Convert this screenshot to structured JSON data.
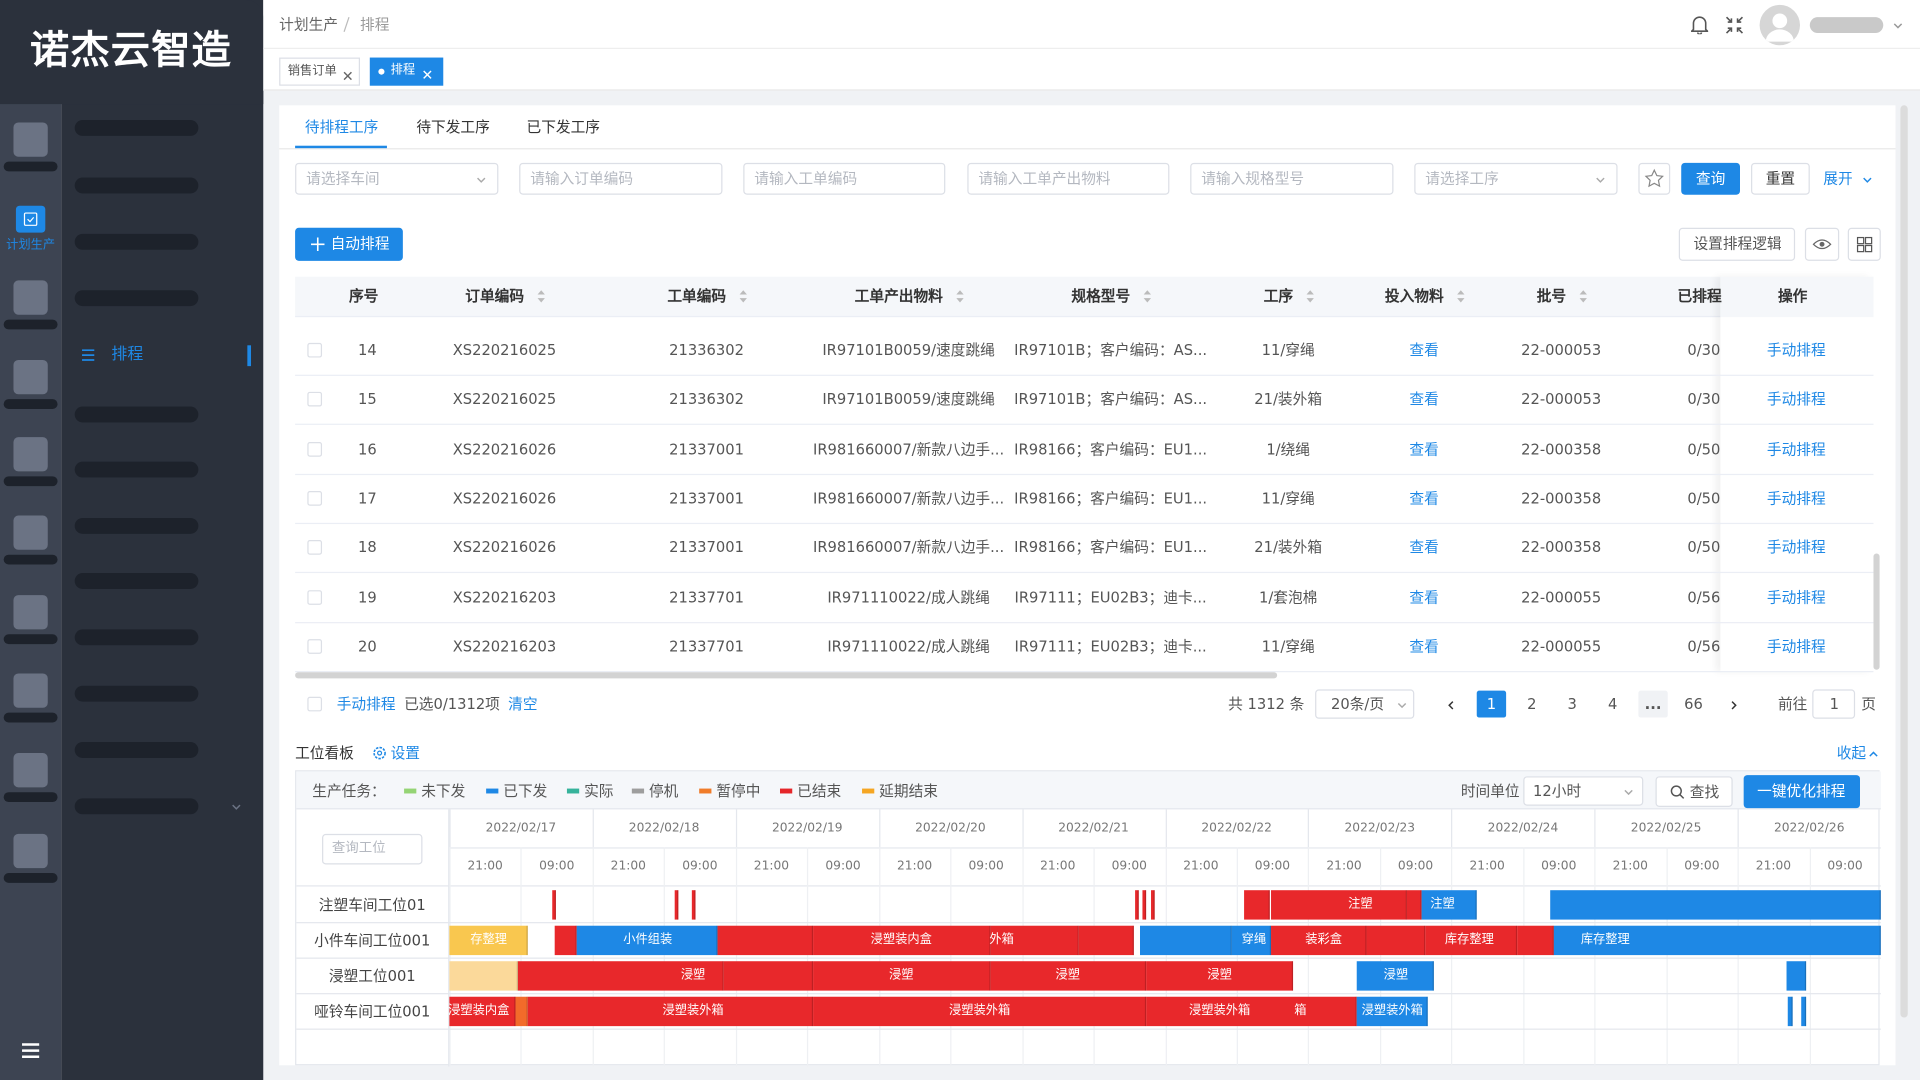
{
  "logo": "诺杰云智造",
  "sidebar": {
    "icon_label": "计划生产",
    "menu_item": "排程"
  },
  "breadcrumb": [
    "计划生产",
    "排程"
  ],
  "page_tabs": [
    "销售订单",
    "排程"
  ],
  "sub_tabs": [
    "待排程工序",
    "待下发工序",
    "已下发工序"
  ],
  "filters": [
    "请选择车间",
    "请输入订单编码",
    "请输入工单编码",
    "请输入工单产出物料",
    "请输入规格型号",
    "请选择工序"
  ],
  "actions": {
    "query": "查询",
    "reset": "重置",
    "expand": "展开",
    "auto_schedule": "自动排程",
    "schedule_logic": "设置排程逻辑"
  },
  "table": {
    "columns": [
      "序号",
      "订单编码",
      "工单编码",
      "工单产出物料",
      "规格型号",
      "工序",
      "投入物料",
      "批号",
      "已排程",
      "操作"
    ],
    "rows": [
      [
        14,
        "XS220216025",
        "21336302",
        "IR97101B0059/速度跳绳",
        "IR97101B；客户编码：AS...",
        "11/穿绳",
        "查看",
        "22-000053",
        "0/30",
        "手动排程"
      ],
      [
        15,
        "XS220216025",
        "21336302",
        "IR97101B0059/速度跳绳",
        "IR97101B；客户编码：AS...",
        "21/装外箱",
        "查看",
        "22-000053",
        "0/30",
        "手动排程"
      ],
      [
        16,
        "XS220216026",
        "21337001",
        "IR981660007/新款八边手...",
        "IR98166；客户编码：EU1...",
        "1/绕绳",
        "查看",
        "22-000358",
        "0/50",
        "手动排程"
      ],
      [
        17,
        "XS220216026",
        "21337001",
        "IR981660007/新款八边手...",
        "IR98166；客户编码：EU1...",
        "11/穿绳",
        "查看",
        "22-000358",
        "0/50",
        "手动排程"
      ],
      [
        18,
        "XS220216026",
        "21337001",
        "IR981660007/新款八边手...",
        "IR98166；客户编码：EU1...",
        "21/装外箱",
        "查看",
        "22-000358",
        "0/50",
        "手动排程"
      ],
      [
        19,
        "XS220216203",
        "21337701",
        "IR971110022/成人跳绳",
        "IR97111；EU02B3；迪卡...",
        "1/套泡棉",
        "查看",
        "22-000055",
        "0/56",
        "手动排程"
      ],
      [
        20,
        "XS220216203",
        "21337701",
        "IR971110022/成人跳绳",
        "IR97111；EU02B3；迪卡...",
        "11/穿绳",
        "查看",
        "22-000055",
        "0/56",
        "手动排程"
      ]
    ]
  },
  "pagination": {
    "manual": "手动排程",
    "selected": "已选0/1312项",
    "clear": "清空",
    "total": "共 1312 条",
    "page_size": "20条/页",
    "pages": [
      "1",
      "2",
      "3",
      "4",
      "...",
      "66"
    ],
    "goto": "前往",
    "goto_value": "1",
    "page_unit": "页"
  },
  "board": {
    "title": "工位看板",
    "settings": "设置",
    "collapse": "收起",
    "task_label": "生产任务：",
    "legend": [
      {
        "name": "未下发",
        "color": "#95d475"
      },
      {
        "name": "已下发",
        "color": "#1e88e5"
      },
      {
        "name": "实际",
        "color": "#36b39b"
      },
      {
        "name": "停机",
        "color": "#9e9e9e"
      },
      {
        "name": "暂停中",
        "color": "#f07c2a"
      },
      {
        "name": "已结束",
        "color": "#e5262a"
      },
      {
        "name": "延期结束",
        "color": "#f5a623"
      }
    ],
    "time_unit_label": "时间单位",
    "time_unit": "12小时",
    "find": "查找",
    "optimize": "一键优化排程",
    "search_placeholder": "查询工位",
    "dates": [
      "2022/02/17",
      "2022/02/18",
      "2022/02/19",
      "2022/02/20",
      "2022/02/21",
      "2022/02/22",
      "2022/02/23",
      "2022/02/24",
      "2022/02/25",
      "2022/02/26"
    ],
    "hours": [
      "21:00",
      "09:00"
    ],
    "rows": [
      {
        "name": "注塑车间工位01",
        "tasks": [
          "注塑",
          "注塑"
        ]
      },
      {
        "name": "小件车间工位001",
        "tasks": [
          "存整理",
          "小件组装",
          "浸塑装内盒",
          "外箱",
          "穿绳",
          "装彩盒",
          "库存整理",
          "库存整理"
        ]
      },
      {
        "name": "浸塑工位001",
        "tasks": [
          "浸塑",
          "浸塑",
          "浸塑",
          "浸塑",
          "浸塑"
        ]
      },
      {
        "name": "哑铃车间工位001",
        "tasks": [
          "浸塑装内盒",
          "浸塑装外箱",
          "浸塑装外箱",
          "浸塑装外箱",
          "箱",
          "浸塑装外箱"
        ]
      }
    ]
  }
}
